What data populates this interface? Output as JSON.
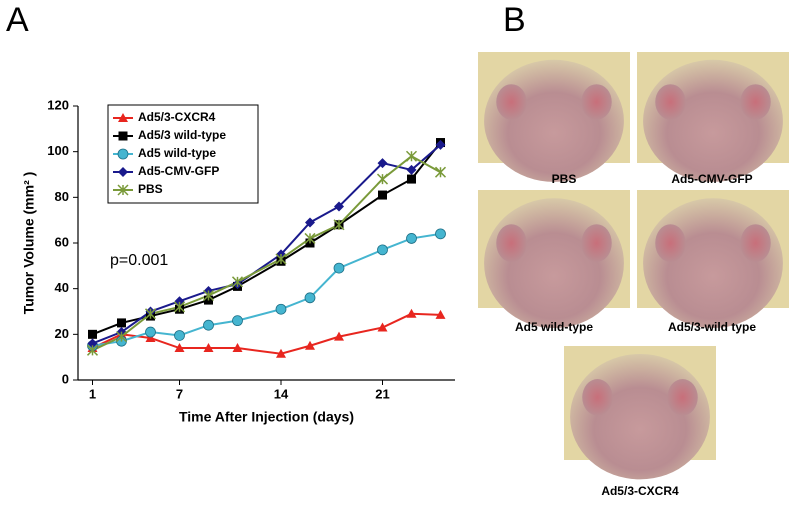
{
  "panels": {
    "a": "A",
    "b": "B"
  },
  "chart_data": {
    "type": "line",
    "x_label": "Time After Injection (days)",
    "y_label": "Tumor  Volume (mm² )",
    "annotation": "p=0.001",
    "x": [
      1,
      3,
      5,
      7,
      9,
      11,
      14,
      16,
      18,
      21,
      23,
      25
    ],
    "xlim": [
      0,
      26
    ],
    "xticks": [
      1,
      7,
      14,
      21
    ],
    "ylim": [
      0,
      120
    ],
    "yticks": [
      0,
      20,
      40,
      60,
      80,
      100,
      120
    ],
    "legend": "upper left",
    "series": [
      {
        "name": "Ad5/3-CXCR4",
        "color": "#e8261f",
        "marker": "triangle",
        "values": [
          14,
          20,
          18.4,
          14,
          14,
          14,
          11.5,
          15,
          19,
          23,
          29,
          28.5
        ]
      },
      {
        "name": "Ad5/3 wild-type",
        "color": "#000000",
        "marker": "square",
        "values": [
          20,
          25,
          28,
          31,
          35,
          41,
          52,
          60,
          68,
          81,
          88,
          104
        ]
      },
      {
        "name": "Ad5 wild-type",
        "color": "#45b5d0",
        "marker": "circle",
        "values": [
          15,
          17,
          21,
          19.5,
          24,
          26,
          31,
          36,
          49,
          57,
          62,
          64
        ]
      },
      {
        "name": "Ad5-CMV-GFP",
        "color": "#1a1a8c",
        "marker": "diamond",
        "values": [
          16,
          21,
          30,
          34.5,
          39,
          42,
          55,
          69,
          76,
          95,
          92,
          103
        ]
      },
      {
        "name": "PBS",
        "color": "#7a9a3a",
        "marker": "asterisk",
        "values": [
          13,
          19,
          29,
          32,
          37,
          43,
          53,
          62,
          68,
          88,
          98,
          91
        ]
      }
    ]
  },
  "photos": [
    {
      "caption": "PBS"
    },
    {
      "caption": "Ad5-CMV-GFP"
    },
    {
      "caption": "Ad5 wild-type"
    },
    {
      "caption": "Ad5/3-wild type"
    },
    {
      "caption": "Ad5/3-CXCR4"
    }
  ]
}
